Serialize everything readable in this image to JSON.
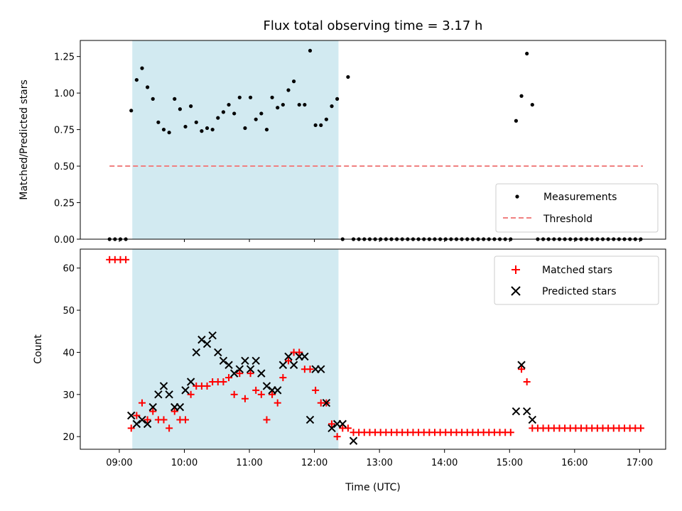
{
  "chart_data": [
    {
      "type": "scatter",
      "title": "Flux total observing time = 3.17 h",
      "xlabel": "",
      "ylabel": "Matched/Predicted stars",
      "xlim_hours": [
        8.4,
        17.4
      ],
      "ylim": [
        0,
        1.36
      ],
      "yticks": [
        0,
        0.25,
        0.5,
        0.75,
        1.0,
        1.25
      ],
      "ytick_labels": [
        "0.00",
        "0.25",
        "0.50",
        "0.75",
        "1.00",
        "1.25"
      ],
      "shaded_span_hours": [
        9.2,
        12.37
      ],
      "shaded_color": "#add8e6",
      "threshold": {
        "name": "Threshold",
        "value": 0.5,
        "x_hours": [
          8.85,
          17.05
        ],
        "color": "#f08080"
      },
      "legend": {
        "placement": "lower-right",
        "entries": [
          "Measurements",
          "Threshold"
        ]
      },
      "series": [
        {
          "name": "Measurements",
          "color": "#000000",
          "marker": "dot",
          "points": [
            [
              "08:51",
              0
            ],
            [
              "08:56",
              0
            ],
            [
              "09:01",
              0
            ],
            [
              "09:06",
              0
            ],
            [
              "09:11",
              0.88
            ],
            [
              "09:16",
              1.09
            ],
            [
              "09:21",
              1.17
            ],
            [
              "09:26",
              1.04
            ],
            [
              "09:31",
              0.96
            ],
            [
              "09:36",
              0.8
            ],
            [
              "09:41",
              0.75
            ],
            [
              "09:46",
              0.73
            ],
            [
              "09:51",
              0.96
            ],
            [
              "09:56",
              0.89
            ],
            [
              "10:01",
              0.77
            ],
            [
              "10:06",
              0.91
            ],
            [
              "10:11",
              0.8
            ],
            [
              "10:16",
              0.74
            ],
            [
              "10:21",
              0.76
            ],
            [
              "10:26",
              0.75
            ],
            [
              "10:31",
              0.83
            ],
            [
              "10:36",
              0.87
            ],
            [
              "10:41",
              0.92
            ],
            [
              "10:46",
              0.86
            ],
            [
              "10:51",
              0.97
            ],
            [
              "10:56",
              0.76
            ],
            [
              "11:01",
              0.97
            ],
            [
              "11:06",
              0.82
            ],
            [
              "11:11",
              0.86
            ],
            [
              "11:16",
              0.75
            ],
            [
              "11:21",
              0.97
            ],
            [
              "11:26",
              0.9
            ],
            [
              "11:31",
              0.92
            ],
            [
              "11:36",
              1.02
            ],
            [
              "11:41",
              1.08
            ],
            [
              "11:46",
              0.92
            ],
            [
              "11:51",
              0.92
            ],
            [
              "11:56",
              1.29
            ],
            [
              "12:01",
              0.78
            ],
            [
              "12:06",
              0.78
            ],
            [
              "12:11",
              0.82
            ],
            [
              "12:16",
              0.91
            ],
            [
              "12:21",
              0.96
            ],
            [
              "12:26",
              0
            ],
            [
              "12:31",
              1.11
            ],
            [
              "12:36",
              0
            ],
            [
              "12:41",
              0
            ],
            [
              "12:46",
              0
            ],
            [
              "12:51",
              0
            ],
            [
              "12:56",
              0
            ],
            [
              "13:01",
              0
            ],
            [
              "13:06",
              0
            ],
            [
              "13:11",
              0
            ],
            [
              "13:16",
              0
            ],
            [
              "13:21",
              0
            ],
            [
              "13:26",
              0
            ],
            [
              "13:31",
              0
            ],
            [
              "13:36",
              0
            ],
            [
              "13:41",
              0
            ],
            [
              "13:46",
              0
            ],
            [
              "13:51",
              0
            ],
            [
              "13:56",
              0
            ],
            [
              "14:01",
              0
            ],
            [
              "14:06",
              0
            ],
            [
              "14:11",
              0
            ],
            [
              "14:16",
              0
            ],
            [
              "14:21",
              0
            ],
            [
              "14:26",
              0
            ],
            [
              "14:31",
              0
            ],
            [
              "14:36",
              0
            ],
            [
              "14:41",
              0
            ],
            [
              "14:46",
              0
            ],
            [
              "14:51",
              0
            ],
            [
              "14:56",
              0
            ],
            [
              "15:01",
              0
            ],
            [
              "15:06",
              0.81
            ],
            [
              "15:11",
              0.98
            ],
            [
              "15:16",
              1.27
            ],
            [
              "15:21",
              0.92
            ],
            [
              "15:26",
              0
            ],
            [
              "15:31",
              0
            ],
            [
              "15:36",
              0
            ],
            [
              "15:41",
              0
            ],
            [
              "15:46",
              0
            ],
            [
              "15:51",
              0
            ],
            [
              "15:56",
              0
            ],
            [
              "16:01",
              0
            ],
            [
              "16:06",
              0
            ],
            [
              "16:11",
              0
            ],
            [
              "16:16",
              0
            ],
            [
              "16:21",
              0
            ],
            [
              "16:26",
              0
            ],
            [
              "16:31",
              0
            ],
            [
              "16:36",
              0
            ],
            [
              "16:41",
              0
            ],
            [
              "16:46",
              0
            ],
            [
              "16:51",
              0
            ],
            [
              "16:56",
              0
            ],
            [
              "17:01",
              0
            ]
          ]
        }
      ]
    },
    {
      "type": "scatter",
      "title": "",
      "xlabel": "Time (UTC)",
      "ylabel": "Count",
      "xlim_hours": [
        8.4,
        17.4
      ],
      "ylim": [
        17,
        64.5
      ],
      "yticks": [
        20,
        30,
        40,
        50,
        60
      ],
      "ytick_labels": [
        "20",
        "30",
        "40",
        "50",
        "60"
      ],
      "xticks_hours": [
        9,
        10,
        11,
        12,
        13,
        14,
        15,
        16,
        17
      ],
      "xtick_labels": [
        "09:00",
        "10:00",
        "11:00",
        "12:00",
        "13:00",
        "14:00",
        "15:00",
        "16:00",
        "17:00"
      ],
      "shaded_span_hours": [
        9.2,
        12.37
      ],
      "shaded_color": "#add8e6",
      "legend": {
        "placement": "upper-right",
        "entries": [
          "Matched stars",
          "Predicted stars"
        ]
      },
      "series": [
        {
          "name": "Matched stars",
          "color": "#ff0000",
          "marker": "plus",
          "points": [
            [
              "08:51",
              62
            ],
            [
              "08:56",
              62
            ],
            [
              "09:01",
              62
            ],
            [
              "09:06",
              62
            ],
            [
              "09:11",
              22
            ],
            [
              "09:16",
              25
            ],
            [
              "09:21",
              28
            ],
            [
              "09:26",
              24
            ],
            [
              "09:31",
              26
            ],
            [
              "09:36",
              24
            ],
            [
              "09:41",
              24
            ],
            [
              "09:46",
              22
            ],
            [
              "09:51",
              26
            ],
            [
              "09:56",
              24
            ],
            [
              "10:01",
              24
            ],
            [
              "10:06",
              30
            ],
            [
              "10:11",
              32
            ],
            [
              "10:16",
              32
            ],
            [
              "10:21",
              32
            ],
            [
              "10:26",
              33
            ],
            [
              "10:31",
              33
            ],
            [
              "10:36",
              33
            ],
            [
              "10:41",
              34
            ],
            [
              "10:46",
              30
            ],
            [
              "10:51",
              35
            ],
            [
              "10:56",
              29
            ],
            [
              "11:01",
              35
            ],
            [
              "11:06",
              31
            ],
            [
              "11:11",
              30
            ],
            [
              "11:16",
              24
            ],
            [
              "11:21",
              30
            ],
            [
              "11:26",
              28
            ],
            [
              "11:31",
              34
            ],
            [
              "11:36",
              38
            ],
            [
              "11:41",
              40
            ],
            [
              "11:46",
              40
            ],
            [
              "11:51",
              36
            ],
            [
              "11:56",
              36
            ],
            [
              "12:01",
              31
            ],
            [
              "12:06",
              28
            ],
            [
              "12:11",
              28
            ],
            [
              "12:16",
              23
            ],
            [
              "12:21",
              20
            ],
            [
              "12:26",
              22
            ],
            [
              "12:31",
              22
            ],
            [
              "12:36",
              21
            ],
            [
              "12:41",
              21
            ],
            [
              "12:46",
              21
            ],
            [
              "12:51",
              21
            ],
            [
              "12:56",
              21
            ],
            [
              "13:01",
              21
            ],
            [
              "13:06",
              21
            ],
            [
              "13:11",
              21
            ],
            [
              "13:16",
              21
            ],
            [
              "13:21",
              21
            ],
            [
              "13:26",
              21
            ],
            [
              "13:31",
              21
            ],
            [
              "13:36",
              21
            ],
            [
              "13:41",
              21
            ],
            [
              "13:46",
              21
            ],
            [
              "13:51",
              21
            ],
            [
              "13:56",
              21
            ],
            [
              "14:01",
              21
            ],
            [
              "14:06",
              21
            ],
            [
              "14:11",
              21
            ],
            [
              "14:16",
              21
            ],
            [
              "14:21",
              21
            ],
            [
              "14:26",
              21
            ],
            [
              "14:31",
              21
            ],
            [
              "14:36",
              21
            ],
            [
              "14:41",
              21
            ],
            [
              "14:46",
              21
            ],
            [
              "14:51",
              21
            ],
            [
              "14:56",
              21
            ],
            [
              "15:01",
              21
            ],
            [
              "15:11",
              36
            ],
            [
              "15:16",
              33
            ],
            [
              "15:21",
              22
            ],
            [
              "15:26",
              22
            ],
            [
              "15:31",
              22
            ],
            [
              "15:36",
              22
            ],
            [
              "15:41",
              22
            ],
            [
              "15:46",
              22
            ],
            [
              "15:51",
              22
            ],
            [
              "15:56",
              22
            ],
            [
              "16:01",
              22
            ],
            [
              "16:06",
              22
            ],
            [
              "16:11",
              22
            ],
            [
              "16:16",
              22
            ],
            [
              "16:21",
              22
            ],
            [
              "16:26",
              22
            ],
            [
              "16:31",
              22
            ],
            [
              "16:36",
              22
            ],
            [
              "16:41",
              22
            ],
            [
              "16:46",
              22
            ],
            [
              "16:51",
              22
            ],
            [
              "16:56",
              22
            ],
            [
              "17:01",
              22
            ]
          ]
        },
        {
          "name": "Predicted stars",
          "color": "#000000",
          "marker": "x",
          "points": [
            [
              "09:11",
              25
            ],
            [
              "09:16",
              23
            ],
            [
              "09:21",
              24
            ],
            [
              "09:26",
              23
            ],
            [
              "09:31",
              27
            ],
            [
              "09:36",
              30
            ],
            [
              "09:41",
              32
            ],
            [
              "09:46",
              30
            ],
            [
              "09:51",
              27
            ],
            [
              "09:56",
              27
            ],
            [
              "10:01",
              31
            ],
            [
              "10:06",
              33
            ],
            [
              "10:11",
              40
            ],
            [
              "10:16",
              43
            ],
            [
              "10:21",
              42
            ],
            [
              "10:26",
              44
            ],
            [
              "10:31",
              40
            ],
            [
              "10:36",
              38
            ],
            [
              "10:41",
              37
            ],
            [
              "10:46",
              35
            ],
            [
              "10:51",
              36
            ],
            [
              "10:56",
              38
            ],
            [
              "11:01",
              36
            ],
            [
              "11:06",
              38
            ],
            [
              "11:11",
              35
            ],
            [
              "11:16",
              32
            ],
            [
              "11:21",
              31
            ],
            [
              "11:26",
              31
            ],
            [
              "11:31",
              37
            ],
            [
              "11:36",
              39
            ],
            [
              "11:41",
              37
            ],
            [
              "11:46",
              39
            ],
            [
              "11:51",
              39
            ],
            [
              "11:56",
              24
            ],
            [
              "12:01",
              36
            ],
            [
              "12:06",
              36
            ],
            [
              "12:11",
              28
            ],
            [
              "12:16",
              22
            ],
            [
              "12:21",
              23
            ],
            [
              "12:26",
              23
            ],
            [
              "12:36",
              19
            ],
            [
              "15:06",
              26
            ],
            [
              "15:11",
              37
            ],
            [
              "15:16",
              26
            ],
            [
              "15:21",
              24
            ]
          ]
        }
      ]
    }
  ]
}
